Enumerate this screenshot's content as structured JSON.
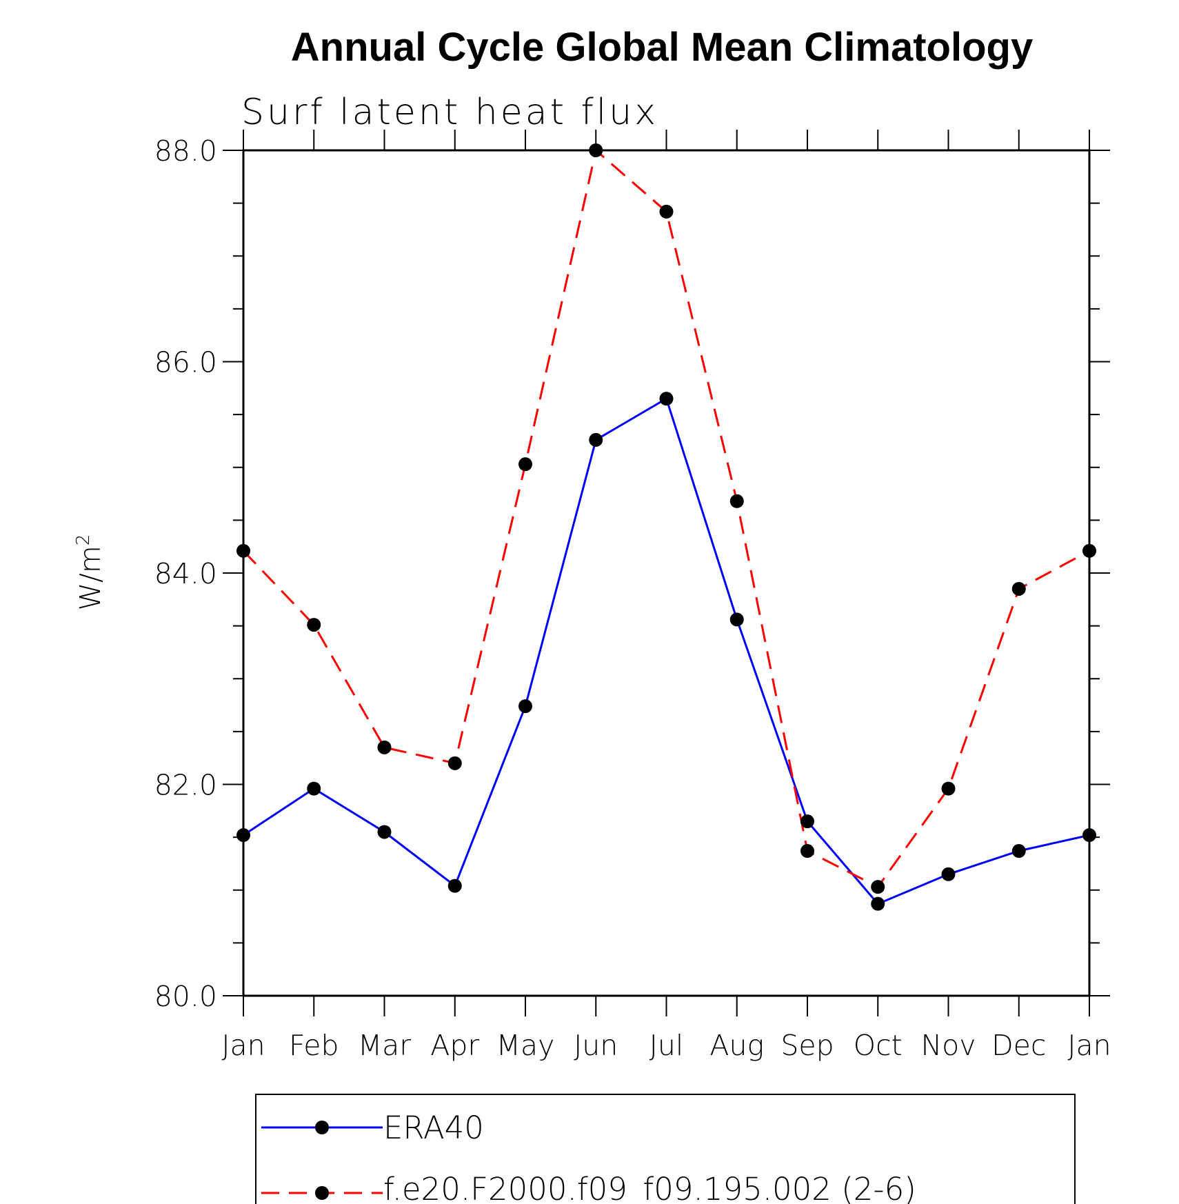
{
  "chart_data": {
    "type": "line",
    "title": "Annual Cycle Global Mean Climatology",
    "subtitle": "Surf latent heat flux",
    "ylabel_base": "W/m",
    "ylabel_sup": "2",
    "xlabel": "",
    "ylim": [
      80.0,
      88.0
    ],
    "yticks": [
      "80.0",
      "82.0",
      "84.0",
      "86.0",
      "88.0"
    ],
    "categories": [
      "Jan",
      "Feb",
      "Mar",
      "Apr",
      "May",
      "Jun",
      "Jul",
      "Aug",
      "Sep",
      "Oct",
      "Nov",
      "Dec",
      "Jan"
    ],
    "series": [
      {
        "name": "ERA40",
        "color": "#0000ff",
        "style": "solid",
        "values": [
          81.52,
          81.96,
          81.55,
          81.04,
          82.74,
          85.26,
          85.65,
          83.56,
          81.65,
          80.87,
          81.15,
          81.37,
          81.52
        ]
      },
      {
        "name": "f.e20.F2000.f09_f09.195.002 (2-6)",
        "color": "#ff0000",
        "style": "dashed",
        "values": [
          84.21,
          83.51,
          82.35,
          82.2,
          85.03,
          88.0,
          87.42,
          84.68,
          81.37,
          81.03,
          81.96,
          83.85,
          84.21
        ]
      }
    ],
    "legend_position": "bottom"
  }
}
